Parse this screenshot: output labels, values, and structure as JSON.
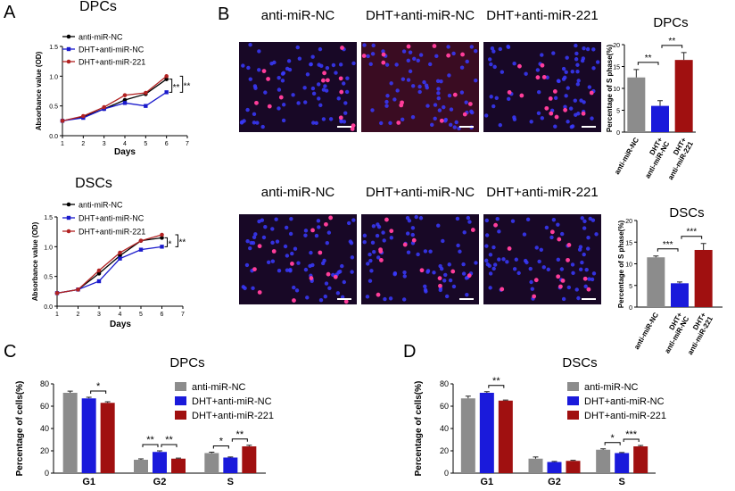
{
  "chart_data": [
    {
      "type": "line",
      "panel_label": "A",
      "title": "DPCs",
      "x_label": "Days",
      "y_label": "Absorbance value (OD)",
      "x": [
        1,
        2,
        3,
        4,
        5,
        6
      ],
      "xlim": [
        1,
        7
      ],
      "xticks": [
        1,
        2,
        3,
        4,
        5,
        6,
        7
      ],
      "ylim": [
        0,
        1.5
      ],
      "yticks": [
        {
          "value": 0,
          "label": "0.0"
        },
        0.5,
        {
          "value": 1,
          "label": "1.0"
        },
        1.5
      ],
      "series": [
        {
          "name": "anti-miR-NC",
          "color": "#000000",
          "values": [
            0.25,
            0.32,
            0.45,
            0.6,
            0.7,
            0.95
          ]
        },
        {
          "name": "DHT+anti-miR-NC",
          "color": "#1a1acc",
          "values": [
            0.25,
            0.3,
            0.45,
            0.55,
            0.5,
            0.73
          ]
        },
        {
          "name": "DHT+anti-miR-221",
          "color": "#b22222",
          "values": [
            0.25,
            0.33,
            0.48,
            0.68,
            0.72,
            1.0
          ]
        }
      ],
      "annotations": [
        {
          "text": "**",
          "between": [
            0,
            1
          ]
        },
        {
          "text": "**",
          "between": [
            1,
            2
          ]
        }
      ]
    },
    {
      "type": "line",
      "title": "DSCs",
      "x_label": "Days",
      "y_label": "Absorbance value (OD)",
      "x": [
        1,
        2,
        3,
        4,
        5,
        6
      ],
      "xlim": [
        1,
        7
      ],
      "xticks": [
        1,
        2,
        3,
        4,
        5,
        6,
        7
      ],
      "ylim": [
        0,
        1.5
      ],
      "yticks": [
        {
          "value": 0,
          "label": "0.0"
        },
        0.5,
        {
          "value": 1,
          "label": "1.0"
        },
        1.5
      ],
      "series": [
        {
          "name": "anti-miR-NC",
          "color": "#000000",
          "values": [
            0.22,
            0.28,
            0.55,
            0.85,
            1.1,
            1.15
          ]
        },
        {
          "name": "DHT+anti-miR-NC",
          "color": "#1a1acc",
          "values": [
            0.22,
            0.28,
            0.42,
            0.8,
            0.95,
            1.0
          ]
        },
        {
          "name": "DHT+anti-miR-221",
          "color": "#b22222",
          "values": [
            0.22,
            0.28,
            0.6,
            0.9,
            1.1,
            1.2
          ]
        }
      ],
      "annotations": [
        {
          "text": "*",
          "between": [
            0,
            1
          ]
        },
        {
          "text": "**",
          "between": [
            1,
            2
          ]
        }
      ]
    },
    {
      "type": "bar",
      "panel_label": "B",
      "title": "DPCs",
      "y_label": "Percentage of S phase(%)",
      "categories": [
        "anti-miR-NC",
        "DHT+\nanti-miR-NC",
        "DHT+\nanti-miR-221"
      ],
      "values": [
        12.5,
        6,
        16.5
      ],
      "errors": [
        1.8,
        1.2,
        1.7
      ],
      "colors": [
        "#8c8c8c",
        "#1a1adb",
        "#a01010"
      ],
      "ylim": [
        0,
        20
      ],
      "yticks": [
        0,
        5,
        10,
        15,
        20
      ],
      "annotations": [
        {
          "text": "**",
          "between": [
            0,
            1
          ]
        },
        {
          "text": "**",
          "between": [
            1,
            2
          ]
        }
      ]
    },
    {
      "type": "bar",
      "title": "DSCs",
      "y_label": "Percentage of S phase(%)",
      "categories": [
        "anti-miR-NC",
        "DHT+\nanti-miR-NC",
        "DHT+\nanti-miR-221"
      ],
      "values": [
        11.5,
        5.5,
        13.2
      ],
      "errors": [
        0.3,
        0.3,
        1.5
      ],
      "colors": [
        "#8c8c8c",
        "#1a1adb",
        "#a01010"
      ],
      "ylim": [
        0,
        20
      ],
      "yticks": [
        0,
        5,
        10,
        15,
        20
      ],
      "annotations": [
        {
          "text": "***",
          "between": [
            0,
            1
          ]
        },
        {
          "text": "***",
          "between": [
            1,
            2
          ]
        }
      ]
    },
    {
      "type": "grouped_bar",
      "panel_label": "C",
      "title": "DPCs",
      "y_label": "Percentage of cells(%)",
      "categories": [
        "G1",
        "G2",
        "S"
      ],
      "ylim": [
        0,
        80
      ],
      "yticks": [
        0,
        20,
        40,
        60,
        80
      ],
      "series": [
        {
          "name": "anti-miR-NC",
          "color": "#8c8c8c",
          "values": [
            72,
            12,
            18
          ],
          "errors": [
            1.5,
            0.8,
            0.8
          ]
        },
        {
          "name": "DHT+anti-miR-NC",
          "color": "#1a1adb",
          "values": [
            67,
            19,
            14
          ],
          "errors": [
            1,
            1,
            0.5
          ]
        },
        {
          "name": "DHT+anti-miR-221",
          "color": "#a01010",
          "values": [
            63,
            13,
            24
          ],
          "errors": [
            1,
            0.5,
            1
          ]
        }
      ],
      "annotations": [
        {
          "text": "*",
          "category": 0,
          "between": [
            1,
            2
          ]
        },
        {
          "text": "**",
          "category": 1,
          "between": [
            0,
            1
          ]
        },
        {
          "text": "**",
          "category": 1,
          "between": [
            1,
            2
          ]
        },
        {
          "text": "*",
          "category": 2,
          "between": [
            0,
            1
          ]
        },
        {
          "text": "**",
          "category": 2,
          "between": [
            1,
            2
          ]
        }
      ]
    },
    {
      "type": "grouped_bar",
      "panel_label": "D",
      "title": "DSCs",
      "y_label": "Percentage of cells(%)",
      "categories": [
        "G1",
        "G2",
        "S"
      ],
      "ylim": [
        0,
        80
      ],
      "yticks": [
        0,
        20,
        40,
        60,
        80
      ],
      "series": [
        {
          "name": "anti-miR-NC",
          "color": "#8c8c8c",
          "values": [
            67,
            13,
            21
          ],
          "errors": [
            2,
            1.5,
            0.8
          ]
        },
        {
          "name": "DHT+anti-miR-NC",
          "color": "#1a1adb",
          "values": [
            72,
            10,
            18
          ],
          "errors": [
            1,
            0.5,
            0.5
          ]
        },
        {
          "name": "DHT+anti-miR-221",
          "color": "#a01010",
          "values": [
            65,
            11,
            24
          ],
          "errors": [
            0.5,
            0.5,
            0.8
          ]
        }
      ],
      "annotations": [
        {
          "text": "**",
          "category": 0,
          "between": [
            1,
            2
          ]
        },
        {
          "text": "*",
          "category": 2,
          "between": [
            0,
            1
          ]
        },
        {
          "text": "***",
          "category": 2,
          "between": [
            1,
            2
          ]
        }
      ]
    }
  ],
  "micrograph_rows": [
    {
      "columns": [
        "anti-miR-NC",
        "DHT+anti-miR-NC",
        "DHT+anti-miR-221"
      ]
    },
    {
      "columns": [
        "anti-miR-NC",
        "DHT+anti-miR-NC",
        "DHT+anti-miR-221"
      ]
    }
  ]
}
